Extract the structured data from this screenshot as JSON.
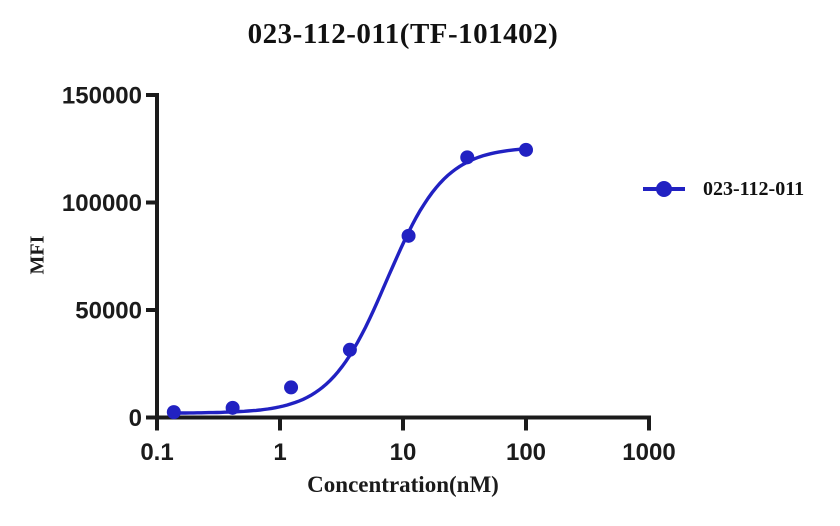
{
  "chart_data": {
    "type": "scatter",
    "title": "023-112-011(TF-101402)",
    "xlabel": "Concentration(nM)",
    "ylabel": "MFI",
    "x_scale": "log10",
    "xlim": [
      0.1,
      1000
    ],
    "ylim": [
      0,
      150000
    ],
    "x_ticks": [
      0.1,
      1,
      10,
      100,
      1000
    ],
    "x_tick_labels": [
      "0.1",
      "1",
      "10",
      "100",
      "1000"
    ],
    "y_ticks": [
      0,
      50000,
      100000,
      150000
    ],
    "y_tick_labels": [
      "0",
      "50000",
      "100000",
      "150000"
    ],
    "grid": false,
    "legend_position": "right-of-plot",
    "series": [
      {
        "name": "023-112-011",
        "color": "#2121c2",
        "marker": "filled-circle",
        "x": [
          0.137,
          0.412,
          1.23,
          3.7,
          11.1,
          33.3,
          100
        ],
        "y": [
          2500,
          4500,
          14000,
          31500,
          84500,
          121000,
          124500
        ],
        "fit": {
          "model": "4PL",
          "bottom": 2000,
          "top": 126000,
          "ec50": 7.4,
          "hill": 1.85,
          "x_range": [
            0.137,
            100
          ]
        }
      }
    ]
  },
  "colors": {
    "background": "#ffffff",
    "axis": "#1b1b1b",
    "tick_text": "#1b1b1b",
    "series_blue": "#2121c2"
  }
}
